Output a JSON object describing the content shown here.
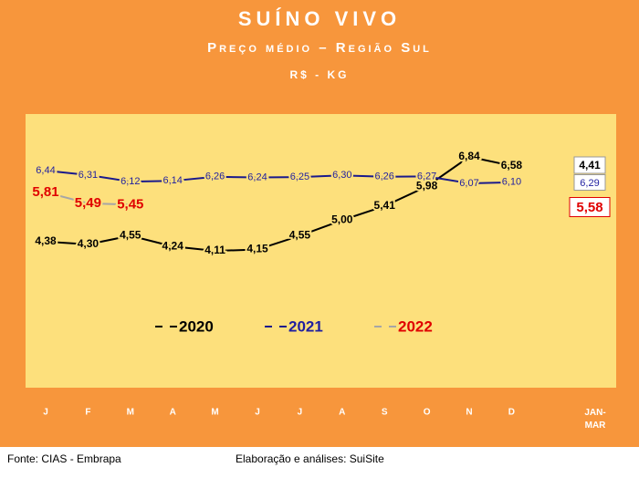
{
  "chart_data": {
    "type": "line",
    "title": "SUÍNO VIVO",
    "subtitle": "Preço médio – Região Sul",
    "unit": "R$ - KG",
    "categories": [
      "J",
      "F",
      "M",
      "A",
      "M",
      "J",
      "J",
      "A",
      "S",
      "O",
      "N",
      "D",
      "JAN-MAR"
    ],
    "series": [
      {
        "name": "2020",
        "color": "#000000",
        "label_color": "#000000",
        "values": [
          4.38,
          4.3,
          4.55,
          4.24,
          4.11,
          4.15,
          4.55,
          5.0,
          5.41,
          5.98,
          6.84,
          6.58,
          4.41
        ],
        "value_labels": [
          "4,38",
          "4,30",
          "4,55",
          "4,24",
          "4,11",
          "4,15",
          "4,55",
          "5,00",
          "5,41",
          "5,98",
          "6,84",
          "6,58",
          "4,41"
        ]
      },
      {
        "name": "2021",
        "color": "#1a1a8c",
        "label_color": "#1f1fa0",
        "values": [
          6.44,
          6.31,
          6.12,
          6.14,
          6.26,
          6.24,
          6.25,
          6.3,
          6.26,
          6.27,
          6.07,
          6.1,
          6.29
        ],
        "value_labels": [
          "6,44",
          "6,31",
          "6,12",
          "6,14",
          "6,26",
          "6,24",
          "6,25",
          "6,30",
          "6,26",
          "6,27",
          "6,07",
          "6,10",
          "6,29"
        ]
      },
      {
        "name": "2022",
        "color": "#a6a6a6",
        "label_color": "#e00000",
        "values": [
          5.81,
          5.49,
          5.45,
          null,
          null,
          null,
          null,
          null,
          null,
          null,
          null,
          null,
          5.58
        ],
        "value_labels": [
          "5,81",
          "5,49",
          "5,45",
          null,
          null,
          null,
          null,
          null,
          null,
          null,
          null,
          null,
          "5,58"
        ]
      }
    ]
  },
  "footer": {
    "source": "Fonte: CIAS - Embrapa",
    "credit": "Elaboração e análises: SuiSite"
  }
}
